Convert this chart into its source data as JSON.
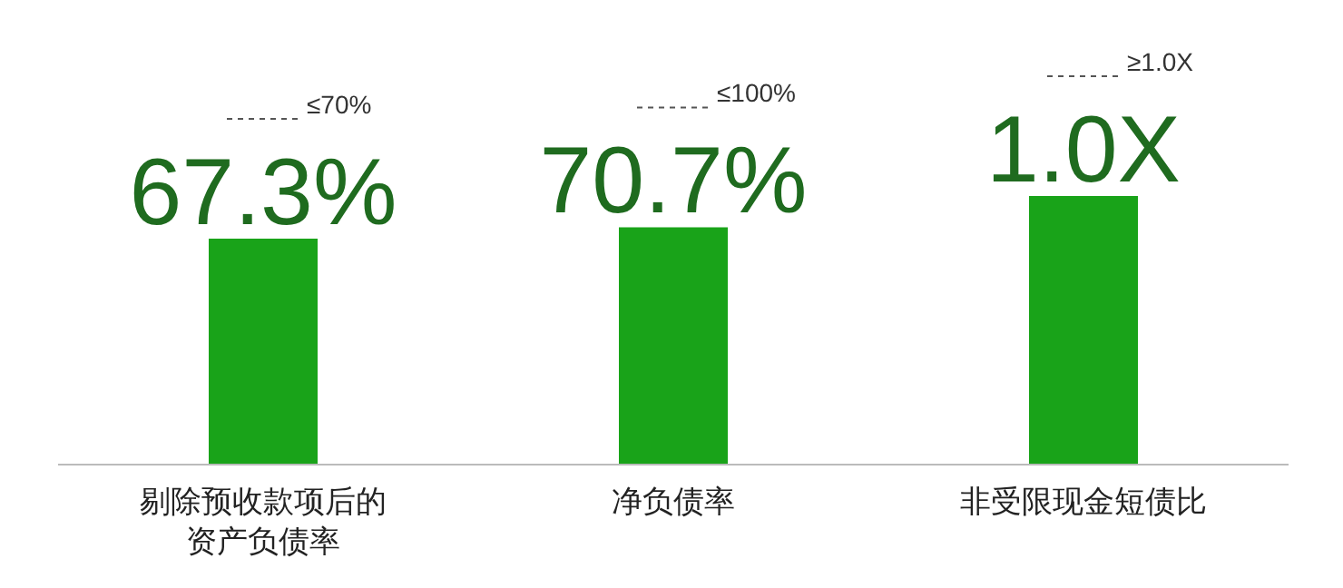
{
  "chart_data": [
    {
      "type": "bar",
      "categories": [
        "剔除预收款项后的资产负债率"
      ],
      "values": [
        67.3
      ],
      "value_labels": [
        "67.3%"
      ],
      "color": "#19a319",
      "tick_labels": "x",
      "annotations": [
        "≤70%"
      ]
    },
    {
      "type": "bar",
      "categories": [
        "净负债率"
      ],
      "values": [
        70.7
      ],
      "value_labels": [
        "70.7%"
      ],
      "color": "#19a319",
      "tick_labels": "x",
      "annotations": [
        "≤100%"
      ]
    },
    {
      "type": "bar",
      "categories": [
        "非受限现金短债比"
      ],
      "values": [
        1.0
      ],
      "value_labels": [
        "1.0X"
      ],
      "color": "#19a319",
      "tick_labels": "x",
      "annotations": [
        "≥1.0X"
      ]
    }
  ]
}
